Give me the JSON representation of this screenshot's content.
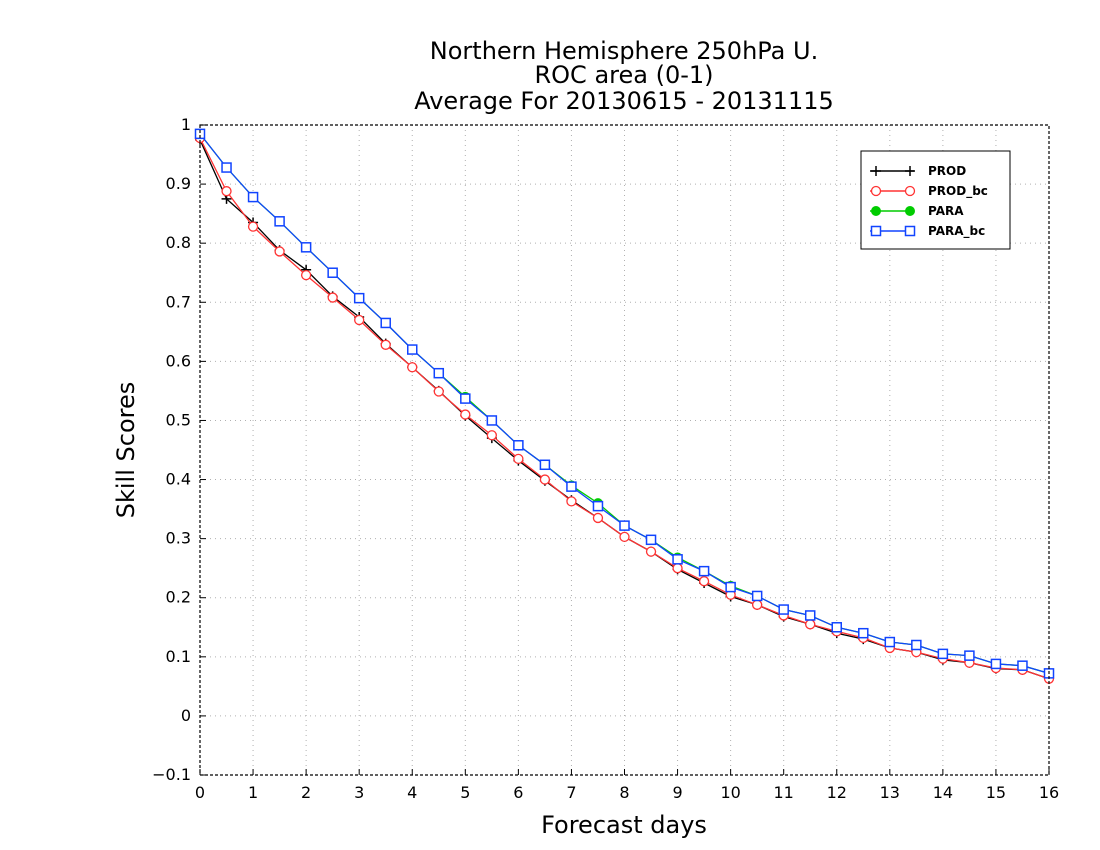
{
  "chart_data": {
    "type": "line",
    "title": [
      "Northern Hemisphere 250hPa U.",
      "ROC area (0-1)",
      "Average For 20130615 - 20131115"
    ],
    "xlabel": "Forecast days",
    "ylabel": "Skill Scores",
    "xlim": [
      0,
      16
    ],
    "ylim": [
      -0.1,
      1
    ],
    "xticks": [
      "0",
      "1",
      "2",
      "3",
      "4",
      "5",
      "6",
      "7",
      "8",
      "9",
      "10",
      "11",
      "12",
      "13",
      "14",
      "15",
      "16"
    ],
    "yticks": [
      "-0.1",
      "0",
      "0.1",
      "0.2",
      "0.3",
      "0.4",
      "0.5",
      "0.6",
      "0.7",
      "0.8",
      "0.9",
      "1"
    ],
    "grid": true,
    "legend_position": "top-right",
    "x": [
      0,
      0.5,
      1,
      1.5,
      2,
      2.5,
      3,
      3.5,
      4,
      4.5,
      5,
      5.5,
      6,
      6.5,
      7,
      7.5,
      8,
      8.5,
      9,
      9.5,
      10,
      10.5,
      11,
      11.5,
      12,
      12.5,
      13,
      13.5,
      14,
      14.5,
      15,
      15.5,
      16
    ],
    "series": [
      {
        "name": "PROD",
        "color": "#000000",
        "marker": "plus",
        "values": [
          0.975,
          0.875,
          0.835,
          0.788,
          0.755,
          0.71,
          0.675,
          0.63,
          0.59,
          0.55,
          0.508,
          0.47,
          0.432,
          0.398,
          0.365,
          0.335,
          0.303,
          0.278,
          0.248,
          0.225,
          0.202,
          0.188,
          0.168,
          0.155,
          0.14,
          0.13,
          0.115,
          0.108,
          0.095,
          0.09,
          0.08,
          0.078,
          0.063
        ]
      },
      {
        "name": "PROD_bc",
        "color": "#ff3333",
        "marker": "circle",
        "values": [
          0.978,
          0.888,
          0.828,
          0.786,
          0.746,
          0.708,
          0.67,
          0.628,
          0.59,
          0.549,
          0.51,
          0.475,
          0.435,
          0.4,
          0.363,
          0.335,
          0.303,
          0.278,
          0.25,
          0.228,
          0.205,
          0.188,
          0.17,
          0.155,
          0.143,
          0.132,
          0.115,
          0.108,
          0.097,
          0.09,
          0.081,
          0.078,
          0.063
        ]
      },
      {
        "name": "PARA",
        "color": "#00cc00",
        "marker": "dot",
        "values": [
          0.985,
          0.928,
          0.878,
          0.837,
          0.793,
          0.75,
          0.707,
          0.665,
          0.62,
          0.58,
          0.54,
          0.5,
          0.458,
          0.425,
          0.39,
          0.36,
          0.322,
          0.298,
          0.268,
          0.245,
          0.22,
          0.203,
          0.18,
          0.17,
          0.15,
          0.14,
          0.125,
          0.12,
          0.105,
          0.102,
          0.088,
          0.085,
          0.072
        ]
      },
      {
        "name": "PARA_bc",
        "color": "#1144ff",
        "marker": "square",
        "values": [
          0.985,
          0.928,
          0.878,
          0.837,
          0.793,
          0.75,
          0.707,
          0.665,
          0.62,
          0.58,
          0.537,
          0.5,
          0.458,
          0.425,
          0.388,
          0.355,
          0.322,
          0.298,
          0.265,
          0.245,
          0.218,
          0.203,
          0.18,
          0.17,
          0.15,
          0.14,
          0.125,
          0.12,
          0.105,
          0.102,
          0.088,
          0.085,
          0.072
        ]
      }
    ]
  }
}
